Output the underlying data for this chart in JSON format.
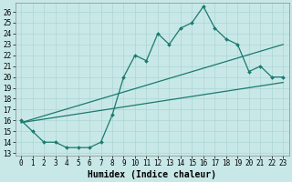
{
  "xlabel": "Humidex (Indice chaleur)",
  "ylabel": "",
  "bg_color": "#c8e8e8",
  "grid_color": "#aed4d4",
  "line_color": "#1a7a6e",
  "xlim": [
    -0.5,
    23.5
  ],
  "ylim": [
    12.8,
    26.8
  ],
  "yticks": [
    13,
    14,
    15,
    16,
    17,
    18,
    19,
    20,
    21,
    22,
    23,
    24,
    25,
    26
  ],
  "xticks": [
    0,
    1,
    2,
    3,
    4,
    5,
    6,
    7,
    8,
    9,
    10,
    11,
    12,
    13,
    14,
    15,
    16,
    17,
    18,
    19,
    20,
    21,
    22,
    23
  ],
  "zigzag_x": [
    0,
    1,
    2,
    3,
    4,
    5,
    6,
    7,
    8,
    9,
    10,
    11,
    12,
    13,
    14,
    15,
    16,
    17,
    18,
    19,
    20,
    21,
    22,
    23
  ],
  "zigzag_y": [
    16.0,
    15.0,
    14.0,
    14.0,
    13.5,
    13.5,
    13.5,
    14.0,
    16.5,
    20.0,
    22.0,
    21.5,
    24.0,
    23.0,
    24.5,
    25.0,
    26.5,
    24.5,
    23.5,
    23.0,
    20.5,
    21.0,
    20.0,
    20.0
  ],
  "line1_x": [
    0,
    23
  ],
  "line1_y": [
    15.8,
    23.0
  ],
  "line2_x": [
    0,
    23
  ],
  "line2_y": [
    15.8,
    19.5
  ],
  "xlabel_fontsize": 7,
  "tick_fontsize": 5.5
}
